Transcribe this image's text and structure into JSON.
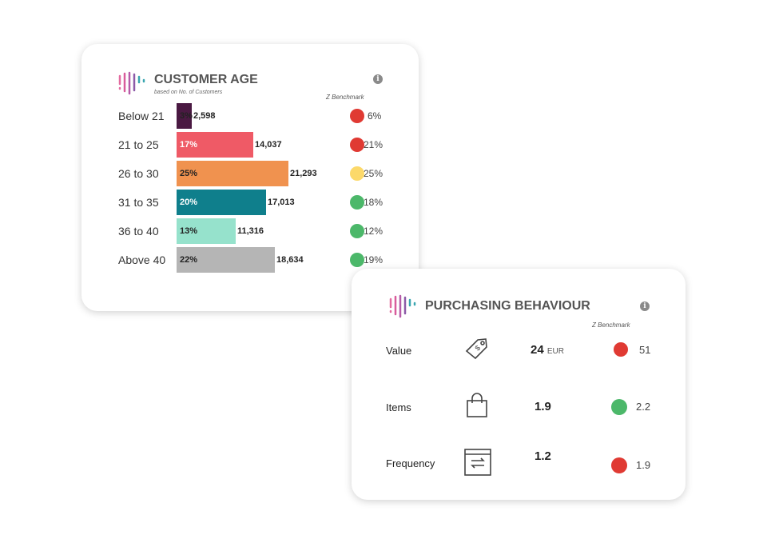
{
  "customer_age": {
    "title": "CUSTOMER AGE",
    "subtitle": "based on No. of  Customers",
    "benchmark_label": "Z Benchmark",
    "info_icon": "i",
    "rows": [
      {
        "label": "Below 21",
        "percent": 3,
        "percent_label": "3%",
        "count": "2,598",
        "color": "#4a1942",
        "text_color": "#222",
        "benchmark": "6%",
        "benchmark_status": "#e03a33"
      },
      {
        "label": "21 to 25",
        "percent": 17,
        "percent_label": "17%",
        "count": "14,037",
        "color": "#ef5a66",
        "text_color": "#fff",
        "benchmark": "21%",
        "benchmark_status": "#e03a33"
      },
      {
        "label": "26 to 30",
        "percent": 25,
        "percent_label": "25%",
        "count": "21,293",
        "color": "#f0924f",
        "text_color": "#222",
        "benchmark": "25%",
        "benchmark_status": "#fcd96a"
      },
      {
        "label": "31 to 35",
        "percent": 20,
        "percent_label": "20%",
        "count": "17,013",
        "color": "#0f7f8c",
        "text_color": "#fff",
        "benchmark": "18%",
        "benchmark_status": "#4cb86a"
      },
      {
        "label": "36 to 40",
        "percent": 13,
        "percent_label": "13%",
        "count": "11,316",
        "color": "#96e2cc",
        "text_color": "#222",
        "benchmark": "12%",
        "benchmark_status": "#4cb86a"
      },
      {
        "label": "Above 40",
        "percent": 22,
        "percent_label": "22%",
        "count": "18,634",
        "color": "#b5b5b5",
        "text_color": "#222",
        "benchmark": "19%",
        "benchmark_status": "#4cb86a"
      }
    ]
  },
  "purchasing": {
    "title": "PURCHASING BEHAVIOUR",
    "benchmark_label": "Z Benchmark",
    "info_icon": "i",
    "rows": [
      {
        "label": "Value",
        "icon": "price-tag-icon",
        "value": "24",
        "unit": "EUR",
        "benchmark": "51",
        "benchmark_status": "#e03a33"
      },
      {
        "label": "Items",
        "icon": "shopping-bag-icon",
        "value": "1.9",
        "unit": "",
        "benchmark": "2.2",
        "benchmark_status": "#4cb86a"
      },
      {
        "label": "Frequency",
        "icon": "repeat-window-icon",
        "value": "1.2",
        "unit": "",
        "benchmark": "1.9",
        "benchmark_status": "#e03a33"
      }
    ]
  }
}
